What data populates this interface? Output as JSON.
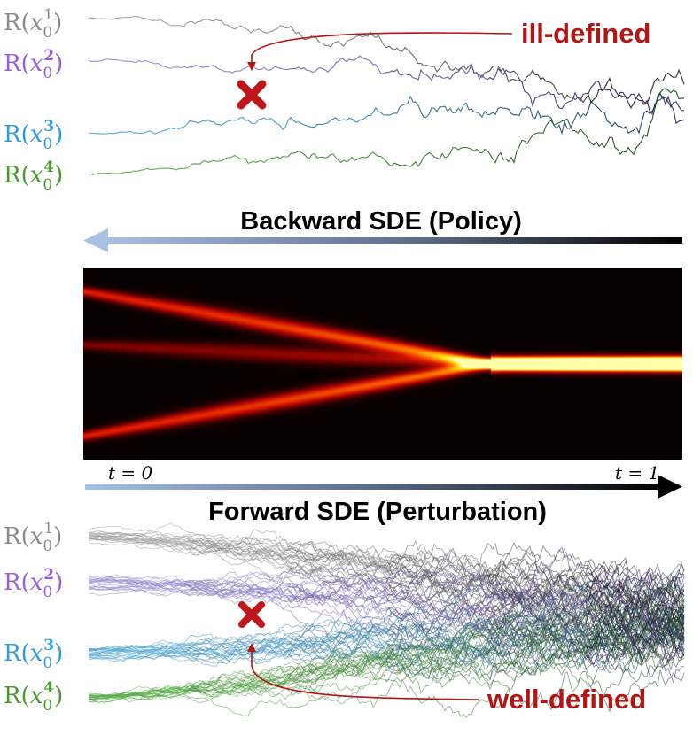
{
  "top_panel": {
    "labels": [
      {
        "func": "R",
        "var": "x",
        "sub": "0",
        "sup": "1",
        "color": "#8a8a8a"
      },
      {
        "func": "R",
        "var": "x",
        "sub": "0",
        "sup": "2",
        "color": "#9b5ce0"
      },
      {
        "func": "R",
        "var": "x",
        "sub": "0",
        "sup": "3",
        "color": "#2e9be0"
      },
      {
        "func": "R",
        "var": "x",
        "sub": "0",
        "sup": "4",
        "color": "#4a9a2a"
      }
    ],
    "callout": "ill-defined"
  },
  "backward_arrow": {
    "label": "Backward SDE (Policy)"
  },
  "forward_arrow": {
    "label": "Forward SDE (Perturbation)",
    "t_start": "t = 0",
    "t_end": "t = 1"
  },
  "bottom_panel": {
    "labels": [
      {
        "func": "R",
        "var": "x",
        "sub": "0",
        "sup": "1",
        "color": "#8a8a8a"
      },
      {
        "func": "R",
        "var": "x",
        "sub": "0",
        "sup": "2",
        "color": "#9b5ce0"
      },
      {
        "func": "R",
        "var": "x",
        "sub": "0",
        "sup": "3",
        "color": "#2e9be0"
      },
      {
        "func": "R",
        "var": "x",
        "sub": "0",
        "sup": "4",
        "color": "#4a9a2a"
      }
    ],
    "callout": "well-defined"
  },
  "colors": {
    "path1": "#a9a9a9",
    "path2": "#9b8fd6",
    "path3": "#4ea9d8",
    "path4": "#5cb04a",
    "callout": "#b31515",
    "cross": "#c0151a",
    "arrow_light": "#a8c0e4",
    "arrow_dark": "#000000"
  }
}
